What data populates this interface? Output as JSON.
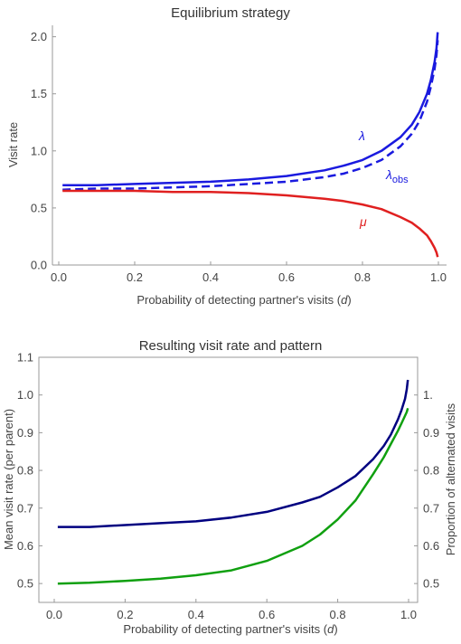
{
  "chart_data": [
    {
      "type": "line",
      "title": "Equilibrium strategy",
      "xlabel": "Probability of detecting partner's visits",
      "xlabel_var": "d",
      "ylabel": "Visit rate",
      "xlim": [
        0,
        1
      ],
      "ylim": [
        0,
        2.1
      ],
      "x_ticks": [
        "0.0",
        "0.2",
        "0.4",
        "0.6",
        "0.8",
        "1.0"
      ],
      "y_ticks": [
        "0.0",
        "0.5",
        "1.0",
        "1.5",
        "2.0"
      ],
      "grid": false,
      "series": [
        {
          "name": "λ",
          "color": "#1a1adf",
          "style": "solid",
          "x": [
            0.01,
            0.1,
            0.2,
            0.3,
            0.4,
            0.5,
            0.6,
            0.7,
            0.75,
            0.8,
            0.85,
            0.9,
            0.93,
            0.95,
            0.97,
            0.98,
            0.99,
            0.995,
            0.998
          ],
          "values": [
            0.7,
            0.7,
            0.71,
            0.72,
            0.73,
            0.75,
            0.78,
            0.83,
            0.87,
            0.92,
            1.0,
            1.12,
            1.23,
            1.34,
            1.5,
            1.62,
            1.78,
            1.9,
            2.04
          ]
        },
        {
          "name": "λ",
          "name_sub": "obs",
          "color": "#1a1adf",
          "style": "dashed",
          "x": [
            0.01,
            0.1,
            0.2,
            0.3,
            0.4,
            0.5,
            0.6,
            0.7,
            0.75,
            0.8,
            0.85,
            0.9,
            0.93,
            0.95,
            0.97,
            0.98,
            0.99,
            0.995,
            0.998
          ],
          "values": [
            0.66,
            0.67,
            0.67,
            0.68,
            0.69,
            0.71,
            0.73,
            0.77,
            0.8,
            0.85,
            0.92,
            1.04,
            1.15,
            1.26,
            1.43,
            1.56,
            1.72,
            1.84,
            1.97
          ]
        },
        {
          "name": "μ",
          "color": "#e02020",
          "style": "solid",
          "x": [
            0.01,
            0.1,
            0.2,
            0.3,
            0.4,
            0.5,
            0.6,
            0.7,
            0.75,
            0.8,
            0.85,
            0.9,
            0.93,
            0.95,
            0.97,
            0.98,
            0.99,
            0.995,
            0.998
          ],
          "values": [
            0.65,
            0.65,
            0.65,
            0.64,
            0.64,
            0.63,
            0.61,
            0.58,
            0.56,
            0.53,
            0.49,
            0.42,
            0.37,
            0.32,
            0.26,
            0.21,
            0.15,
            0.11,
            0.07
          ]
        }
      ]
    },
    {
      "type": "line",
      "title": "Resulting visit rate and pattern",
      "xlabel": "Probability of detecting partner's visits",
      "xlabel_var": "d",
      "ylabel": "Mean visit rate (per parent)",
      "ylabel_color": "#000080",
      "y2label": "Proportion of alternated visits",
      "y2label_color": "#10a010",
      "xlim": [
        0,
        1
      ],
      "ylim": [
        0.45,
        1.1
      ],
      "y2lim": [
        0.45,
        1.1
      ],
      "x_ticks": [
        "0.0",
        "0.2",
        "0.4",
        "0.6",
        "0.8",
        "1.0"
      ],
      "y_ticks": [
        "0.5",
        "0.6",
        "0.7",
        "0.8",
        "0.9",
        "1.0",
        "1.1"
      ],
      "y2_ticks": [
        "0.5",
        "0.6",
        "0.7",
        "0.8",
        "0.9",
        "1."
      ],
      "grid": false,
      "series": [
        {
          "color": "#000080",
          "axis": "left",
          "x": [
            0.01,
            0.1,
            0.2,
            0.3,
            0.4,
            0.5,
            0.6,
            0.7,
            0.75,
            0.8,
            0.85,
            0.9,
            0.93,
            0.95,
            0.97,
            0.98,
            0.99,
            0.995,
            0.998
          ],
          "values": [
            0.65,
            0.65,
            0.655,
            0.66,
            0.665,
            0.675,
            0.69,
            0.715,
            0.73,
            0.755,
            0.785,
            0.83,
            0.865,
            0.895,
            0.935,
            0.96,
            0.99,
            1.015,
            1.04
          ]
        },
        {
          "color": "#10a010",
          "axis": "right",
          "x": [
            0.01,
            0.1,
            0.2,
            0.3,
            0.4,
            0.5,
            0.6,
            0.7,
            0.75,
            0.8,
            0.85,
            0.9,
            0.93,
            0.95,
            0.97,
            0.98,
            0.99,
            0.995,
            0.998
          ],
          "values": [
            0.5,
            0.502,
            0.507,
            0.513,
            0.522,
            0.535,
            0.56,
            0.6,
            0.63,
            0.67,
            0.72,
            0.79,
            0.835,
            0.87,
            0.905,
            0.925,
            0.945,
            0.955,
            0.965
          ]
        }
      ]
    }
  ]
}
